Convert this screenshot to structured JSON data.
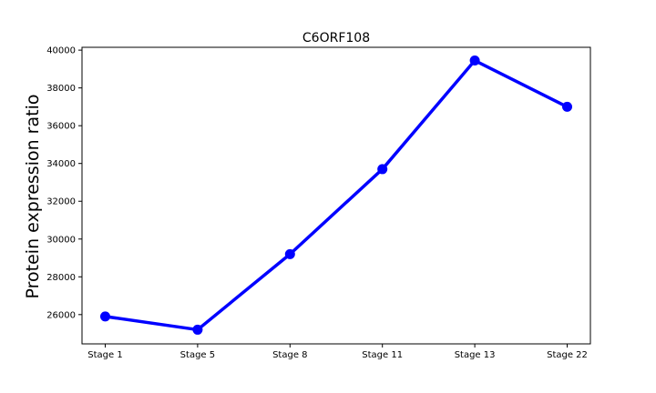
{
  "chart_data": {
    "type": "line",
    "title": "C6ORF108",
    "xlabel": "",
    "ylabel": "Protein expression ratio",
    "categories": [
      "Stage 1",
      "Stage 5",
      "Stage 8",
      "Stage 11",
      "Stage 13",
      "Stage 22"
    ],
    "series": [
      {
        "values": [
          25900,
          25200,
          29200,
          33700,
          39450,
          37000
        ]
      }
    ],
    "ylim": [
      24450,
      40150
    ],
    "yticks": [
      26000,
      28000,
      30000,
      32000,
      34000,
      36000,
      38000,
      40000
    ],
    "grid": false,
    "line_color": "#0000ff"
  }
}
